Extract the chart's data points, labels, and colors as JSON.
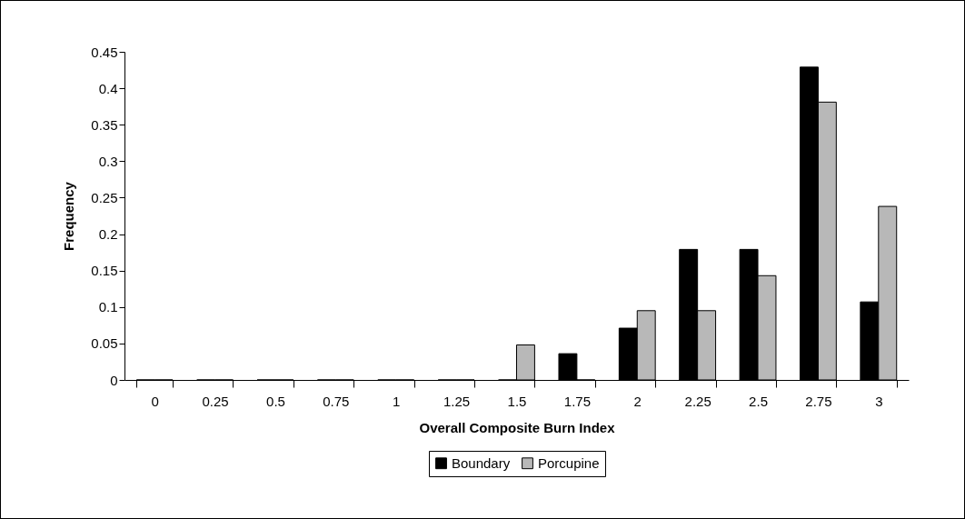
{
  "chart_data": {
    "type": "bar",
    "xlabel": "Overall Composite Burn Index",
    "ylabel": "Frequency",
    "categories": [
      "0",
      "0.25",
      "0.5",
      "0.75",
      "1",
      "1.25",
      "1.5",
      "1.75",
      "2",
      "2.25",
      "2.5",
      "2.75",
      "3"
    ],
    "series": [
      {
        "name": "Boundary",
        "color": "#000000",
        "values": [
          0,
          0,
          0,
          0,
          0,
          0,
          0,
          0.036,
          0.071,
          0.179,
          0.179,
          0.429,
          0.107
        ]
      },
      {
        "name": "Porcupine",
        "color": "#b8b8b8",
        "values": [
          0,
          0,
          0,
          0,
          0,
          0,
          0.048,
          0,
          0.095,
          0.095,
          0.143,
          0.381,
          0.238
        ]
      }
    ],
    "ylim": [
      0,
      0.45
    ],
    "yticks": [
      0,
      0.05,
      0.1,
      0.15,
      0.2,
      0.25,
      0.3,
      0.35,
      0.4,
      0.45
    ],
    "grid": false,
    "legend": "bottom"
  }
}
